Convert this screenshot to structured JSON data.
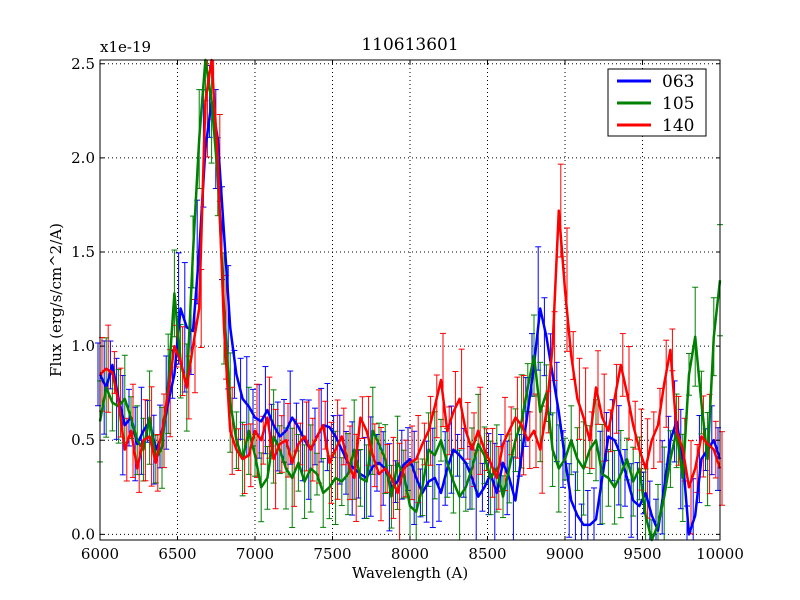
{
  "chart_data": {
    "type": "line",
    "title": "110613601",
    "xlabel": "Wavelength (A)",
    "ylabel": "Flux (erg/s/cm^2/A)",
    "y_scale_label": "x1e-19",
    "xlim": [
      6000,
      10000
    ],
    "ylim": [
      -0.03,
      2.52
    ],
    "xticks": [
      6000,
      6500,
      7000,
      7500,
      8000,
      8500,
      9000,
      9500,
      10000
    ],
    "xtick_labels": [
      "6000",
      "6500",
      "7000",
      "7500",
      "8000",
      "8500",
      "9000",
      "9500",
      "10000"
    ],
    "yticks": [
      0.0,
      0.5,
      1.0,
      1.5,
      2.0,
      2.5
    ],
    "ytick_labels": [
      "0.0",
      "0.5",
      "1.0",
      "1.5",
      "2.0",
      "2.5"
    ],
    "grid": true,
    "legend_position": "top-right",
    "x_start": 6000,
    "x_step": 40,
    "series": [
      {
        "name": "063",
        "color": "#0000ff",
        "values": [
          0.85,
          0.78,
          0.9,
          0.72,
          0.58,
          0.62,
          0.48,
          0.55,
          0.6,
          0.45,
          0.52,
          0.7,
          0.85,
          1.2,
          1.1,
          1.08,
          1.5,
          2.05,
          2.3,
          2.1,
          1.6,
          1.1,
          0.85,
          0.72,
          0.68,
          0.62,
          0.6,
          0.66,
          0.58,
          0.52,
          0.55,
          0.62,
          0.57,
          0.5,
          0.45,
          0.52,
          0.58,
          0.57,
          0.52,
          0.45,
          0.38,
          0.35,
          0.32,
          0.3,
          0.36,
          0.38,
          0.35,
          0.25,
          0.28,
          0.37,
          0.4,
          0.3,
          0.22,
          0.28,
          0.3,
          0.22,
          0.35,
          0.45,
          0.42,
          0.38,
          0.3,
          0.2,
          0.25,
          0.32,
          0.22,
          0.38,
          0.3,
          0.18,
          0.42,
          0.65,
          0.9,
          1.2,
          1.05,
          0.85,
          0.65,
          0.4,
          0.18,
          0.1,
          0.05,
          0.05,
          0.08,
          0.3,
          0.52,
          0.5,
          0.42,
          0.3,
          0.18,
          0.15,
          0.22,
          0.1,
          0.02,
          0.25,
          0.5,
          0.6,
          0.4,
          0.0,
          0.1,
          0.4,
          0.45,
          0.5,
          0.4
        ]
      },
      {
        "name": "105",
        "color": "#008000",
        "values": [
          0.6,
          0.78,
          0.7,
          0.68,
          0.72,
          0.62,
          0.5,
          0.45,
          0.62,
          0.4,
          0.46,
          0.8,
          1.28,
          0.92,
          0.78,
          1.5,
          2.1,
          2.55,
          2.3,
          1.9,
          1.2,
          0.7,
          0.5,
          0.4,
          0.55,
          0.42,
          0.25,
          0.3,
          0.52,
          0.45,
          0.35,
          0.3,
          0.38,
          0.28,
          0.35,
          0.32,
          0.22,
          0.25,
          0.3,
          0.28,
          0.32,
          0.45,
          0.3,
          0.28,
          0.55,
          0.48,
          0.4,
          0.2,
          0.38,
          0.32,
          0.15,
          0.12,
          0.25,
          0.45,
          0.42,
          0.5,
          0.38,
          0.28,
          0.2,
          0.25,
          0.35,
          0.48,
          0.42,
          0.3,
          0.35,
          0.2,
          0.35,
          0.5,
          0.6,
          0.78,
          0.95,
          0.65,
          0.75,
          0.45,
          0.35,
          0.4,
          0.5,
          0.4,
          0.35,
          0.45,
          0.5,
          0.32,
          0.3,
          0.25,
          0.32,
          0.4,
          0.28,
          0.35,
          0.1,
          -0.05,
          0.05,
          0.2,
          0.4,
          0.55,
          0.3,
          0.85,
          1.05,
          0.7,
          0.4,
          1.05,
          1.35
        ]
      },
      {
        "name": "140",
        "color": "#ff0000",
        "values": [
          0.85,
          0.88,
          0.86,
          0.7,
          0.45,
          0.55,
          0.35,
          0.5,
          0.52,
          0.38,
          0.55,
          0.75,
          1.0,
          0.92,
          0.78,
          1.0,
          1.2,
          2.3,
          2.55,
          2.0,
          1.1,
          0.55,
          0.45,
          0.4,
          0.42,
          0.55,
          0.5,
          0.62,
          0.4,
          0.48,
          0.5,
          0.38,
          0.48,
          0.52,
          0.45,
          0.52,
          0.58,
          0.38,
          0.45,
          0.52,
          0.38,
          0.3,
          0.62,
          0.55,
          0.42,
          0.32,
          0.35,
          0.3,
          0.22,
          0.35,
          0.38,
          0.4,
          0.48,
          0.55,
          0.68,
          0.82,
          0.55,
          0.65,
          0.72,
          0.55,
          0.45,
          0.55,
          0.45,
          0.38,
          0.3,
          0.48,
          0.55,
          0.62,
          0.58,
          0.5,
          0.55,
          0.45,
          0.65,
          1.0,
          1.72,
          1.3,
          0.95,
          0.72,
          0.62,
          0.5,
          0.78,
          0.62,
          0.55,
          0.72,
          0.9,
          0.75,
          0.58,
          0.45,
          0.35,
          0.5,
          0.58,
          0.8,
          0.98,
          0.55,
          0.45,
          0.25,
          0.35,
          0.52,
          0.48,
          0.45,
          0.35
        ]
      }
    ]
  }
}
